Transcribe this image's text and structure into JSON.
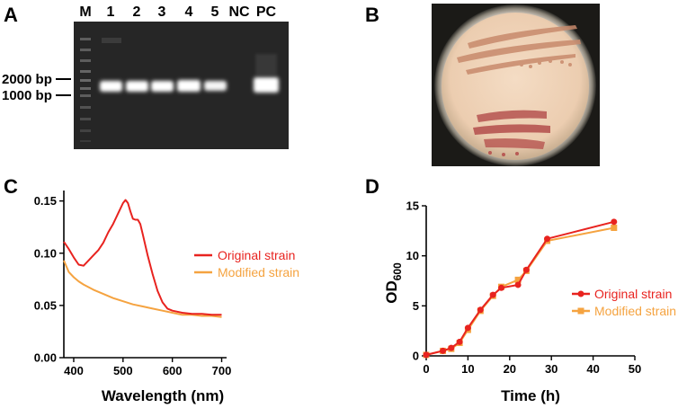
{
  "panels": {
    "a": "A",
    "b": "B",
    "c": "C",
    "d": "D"
  },
  "gel": {
    "lanes": [
      "M",
      "1",
      "2",
      "3",
      "4",
      "5",
      "NC",
      "PC"
    ],
    "markers": [
      "2000 bp",
      "1000 bp"
    ]
  },
  "colors": {
    "original": "#e8231f",
    "modified": "#f5a340",
    "gel_bg": "#262626",
    "plate_agar": "#f1d3b8",
    "colony": "#b85a55"
  },
  "chart_data": [
    {
      "type": "line",
      "xlabel": "Wavelength (nm)",
      "ylabel": "",
      "xlim": [
        380,
        710
      ],
      "ylim": [
        0,
        0.16
      ],
      "xticks": [
        400,
        500,
        600,
        700
      ],
      "yticks": [
        "0.00",
        "0.05",
        "0.10",
        "0.15"
      ],
      "legend_position": "right",
      "series": [
        {
          "name": "Original strain",
          "x": [
            380,
            390,
            400,
            410,
            420,
            430,
            440,
            450,
            460,
            470,
            480,
            490,
            500,
            505,
            510,
            515,
            520,
            525,
            530,
            535,
            540,
            550,
            560,
            570,
            580,
            590,
            600,
            620,
            640,
            660,
            680,
            700
          ],
          "y": [
            0.111,
            0.104,
            0.096,
            0.089,
            0.088,
            0.093,
            0.098,
            0.103,
            0.11,
            0.12,
            0.128,
            0.138,
            0.148,
            0.151,
            0.148,
            0.14,
            0.133,
            0.132,
            0.132,
            0.128,
            0.118,
            0.098,
            0.08,
            0.064,
            0.053,
            0.047,
            0.045,
            0.043,
            0.042,
            0.042,
            0.041,
            0.041
          ]
        },
        {
          "name": "Modified strain",
          "x": [
            380,
            390,
            400,
            410,
            420,
            440,
            460,
            480,
            500,
            520,
            540,
            560,
            580,
            600,
            620,
            640,
            660,
            680,
            700
          ],
          "y": [
            0.093,
            0.082,
            0.077,
            0.073,
            0.07,
            0.065,
            0.061,
            0.057,
            0.054,
            0.051,
            0.049,
            0.047,
            0.045,
            0.043,
            0.041,
            0.041,
            0.04,
            0.04,
            0.039
          ]
        }
      ]
    },
    {
      "type": "line",
      "xlabel": "Time (h)",
      "ylabel": "OD",
      "ylabel_sub": "600",
      "xlim": [
        0,
        50
      ],
      "ylim": [
        0,
        15
      ],
      "xticks": [
        "0",
        "10",
        "20",
        "30",
        "40",
        "50"
      ],
      "yticks": [
        "0",
        "5",
        "10",
        "15"
      ],
      "legend_position": "right",
      "series": [
        {
          "name": "Original strain",
          "marker": "circle",
          "x": [
            0,
            4,
            6,
            8,
            10,
            13,
            16,
            18,
            22,
            24,
            29,
            45
          ],
          "y": [
            0.1,
            0.5,
            0.8,
            1.4,
            2.8,
            4.6,
            6.1,
            6.8,
            7.1,
            8.6,
            11.7,
            13.4
          ]
        },
        {
          "name": "Modified strain",
          "marker": "square",
          "x": [
            0,
            4,
            6,
            8,
            10,
            13,
            16,
            18,
            22,
            24,
            29,
            45
          ],
          "y": [
            0.1,
            0.5,
            0.7,
            1.3,
            2.6,
            4.5,
            6.0,
            6.9,
            7.6,
            8.5,
            11.5,
            12.8
          ]
        }
      ]
    }
  ]
}
